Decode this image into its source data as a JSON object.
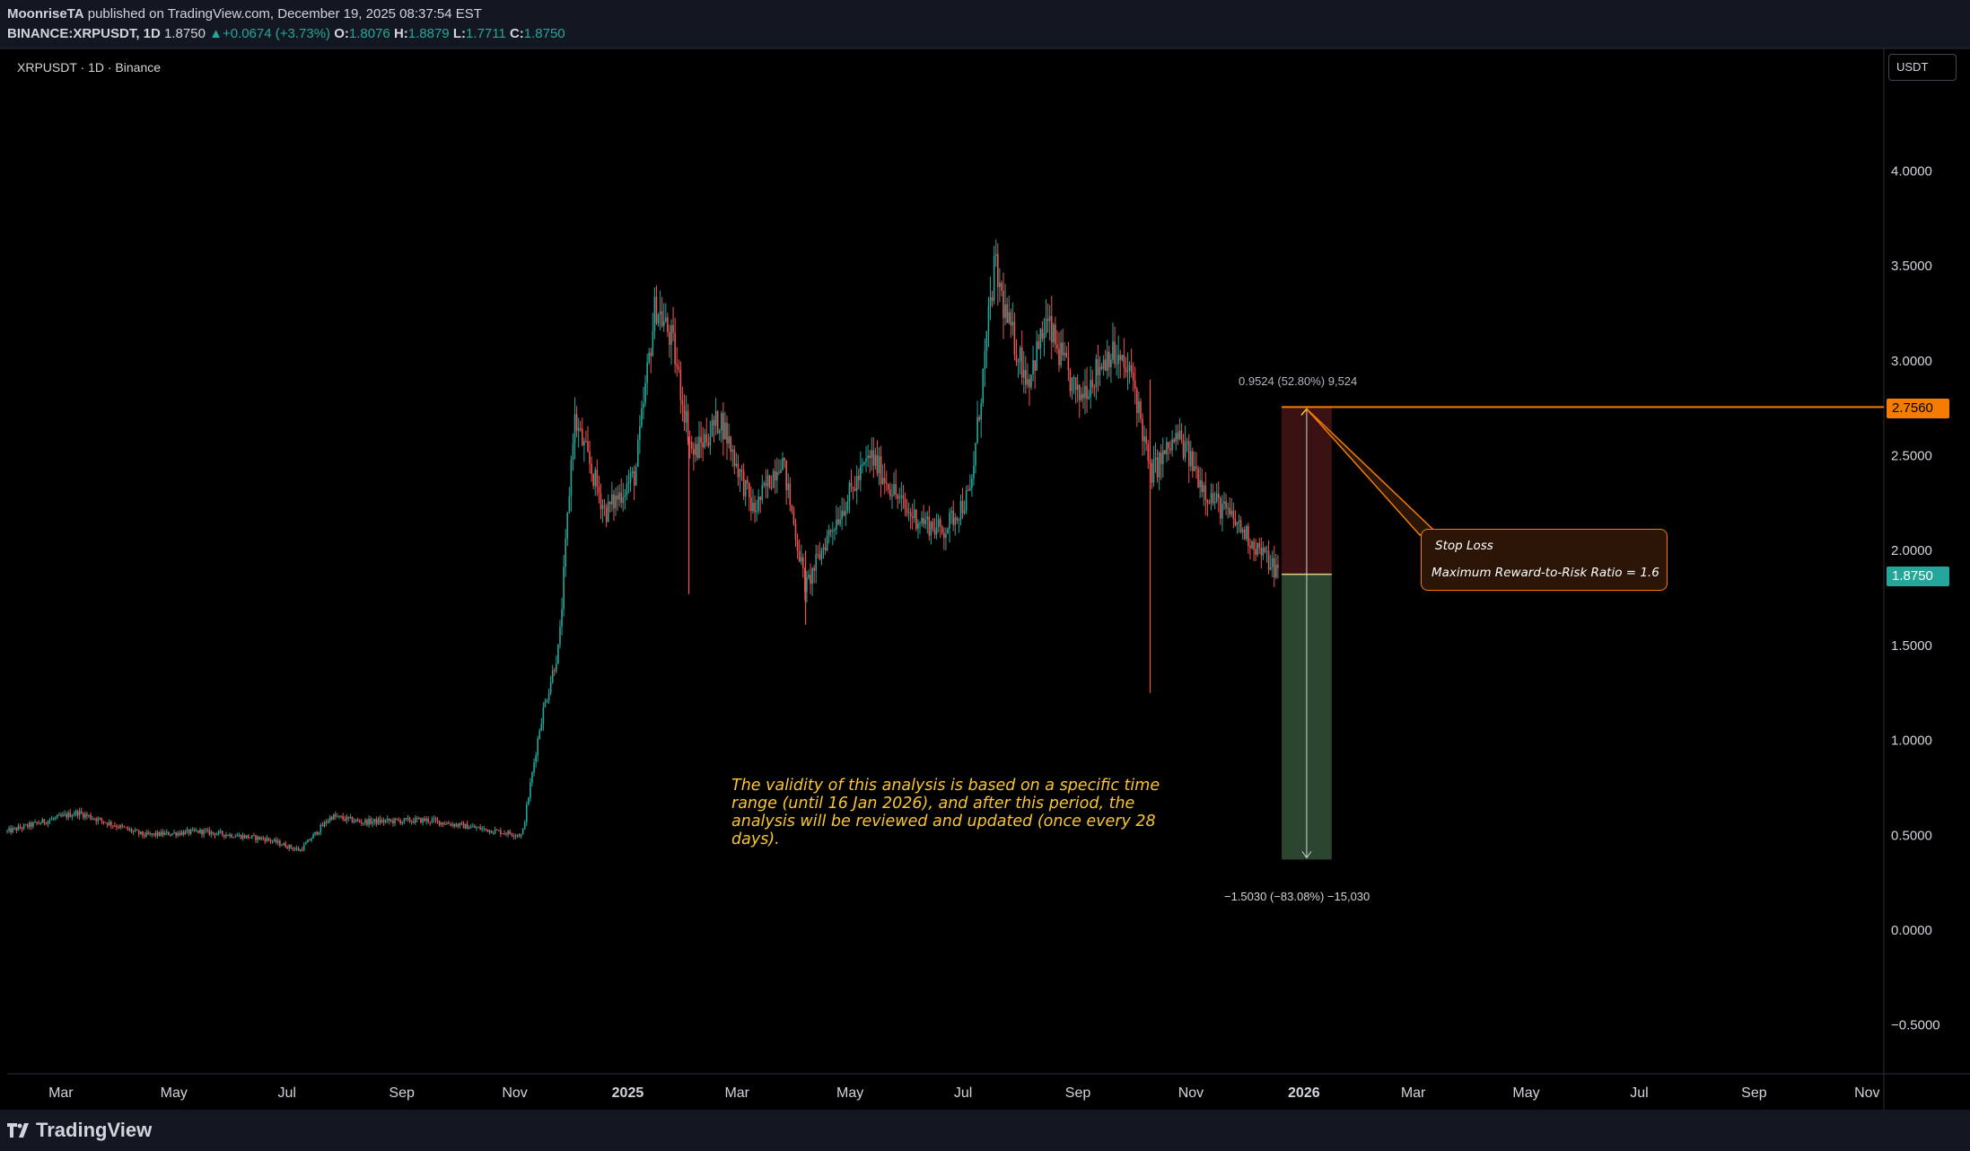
{
  "header": {
    "author": "MoonriseTA",
    "published_text": "published on TradingView.com, December 19, 2025 08:37:54 EST",
    "symbol_full": "BINANCE:XRPUSDT, 1D",
    "last_price": "1.8750",
    "change": "▲+0.0674 (+3.73%)",
    "o_label": "O:",
    "o_value": "1.8076",
    "h_label": "H:",
    "h_value": "1.8879",
    "l_label": "L:",
    "l_value": "1.7711",
    "c_label": "C:",
    "c_value": "1.8750"
  },
  "legend": {
    "symbol": "XRPUSDT · 1D · Binance"
  },
  "currency_button": "USDT",
  "footer": {
    "brand": "TradingView"
  },
  "annotation": "The validity of this analysis is based on a specific time range (until 16 Jan 2026), and after this period, the analysis will be reviewed and updated (once every 28 days).",
  "stop_loss_box": {
    "title": "Stop Loss",
    "ratio": "Maximum Reward-to-Risk Ratio = 1.6"
  },
  "measure": {
    "top_label": "0.9524 (52.80%) 9,524",
    "bottom_label": "−1.5030 (−83.08%) −15,030"
  },
  "price_tags": {
    "stop_loss": "2.7560",
    "current": "1.8750"
  },
  "colors": {
    "background": "#000000",
    "up": "#26a69a",
    "down": "#ef5350",
    "stop_line": "#f57c00",
    "annotation": "#f9c531",
    "risk_zone": "#3a1214",
    "reward_zone": "#2b4530"
  },
  "chart_data": {
    "type": "candlestick",
    "y_axis_ticks": [
      "4.0000",
      "3.5000",
      "3.0000",
      "2.5000",
      "2.0000",
      "1.5000",
      "1.0000",
      "0.5000",
      "0.0000",
      "−0.5000"
    ],
    "x_axis_ticks": [
      "Mar",
      "May",
      "Jul",
      "Sep",
      "Nov",
      "2025",
      "Mar",
      "May",
      "Jul",
      "Sep",
      "Nov",
      "2026",
      "Mar",
      "May",
      "Jul",
      "Sep",
      "Nov"
    ],
    "ylim": [
      -0.75,
      4.75
    ],
    "price_path": [
      [
        "2024-02-01",
        0.52
      ],
      [
        "2024-03-10",
        0.62
      ],
      [
        "2024-04-15",
        0.5
      ],
      [
        "2024-05-15",
        0.52
      ],
      [
        "2024-06-20",
        0.48
      ],
      [
        "2024-07-08",
        0.42
      ],
      [
        "2024-07-25",
        0.6
      ],
      [
        "2024-08-10",
        0.57
      ],
      [
        "2024-09-15",
        0.58
      ],
      [
        "2024-10-10",
        0.54
      ],
      [
        "2024-11-05",
        0.5
      ],
      [
        "2024-11-15",
        1.1
      ],
      [
        "2024-11-25",
        1.5
      ],
      [
        "2024-12-03",
        2.7
      ],
      [
        "2024-12-20",
        2.2
      ],
      [
        "2025-01-05",
        2.4
      ],
      [
        "2025-01-16",
        3.3
      ],
      [
        "2025-01-25",
        3.1
      ],
      [
        "2025-02-05",
        2.5
      ],
      [
        "2025-02-20",
        2.7
      ],
      [
        "2025-03-10",
        2.2
      ],
      [
        "2025-03-25",
        2.5
      ],
      [
        "2025-04-07",
        1.8
      ],
      [
        "2025-04-20",
        2.1
      ],
      [
        "2025-05-12",
        2.5
      ],
      [
        "2025-06-01",
        2.2
      ],
      [
        "2025-06-20",
        2.1
      ],
      [
        "2025-07-05",
        2.3
      ],
      [
        "2025-07-18",
        3.5
      ],
      [
        "2025-07-25",
        3.2
      ],
      [
        "2025-08-05",
        2.9
      ],
      [
        "2025-08-15",
        3.2
      ],
      [
        "2025-09-01",
        2.8
      ],
      [
        "2025-09-18",
        3.05
      ],
      [
        "2025-10-01",
        2.9
      ],
      [
        "2025-10-10",
        2.4
      ],
      [
        "2025-10-25",
        2.6
      ],
      [
        "2025-11-10",
        2.3
      ],
      [
        "2025-11-25",
        2.15
      ],
      [
        "2025-12-19",
        1.875
      ]
    ],
    "stop_loss": 2.756,
    "entry": 1.875,
    "target": 0.372,
    "current_price": 1.875
  }
}
